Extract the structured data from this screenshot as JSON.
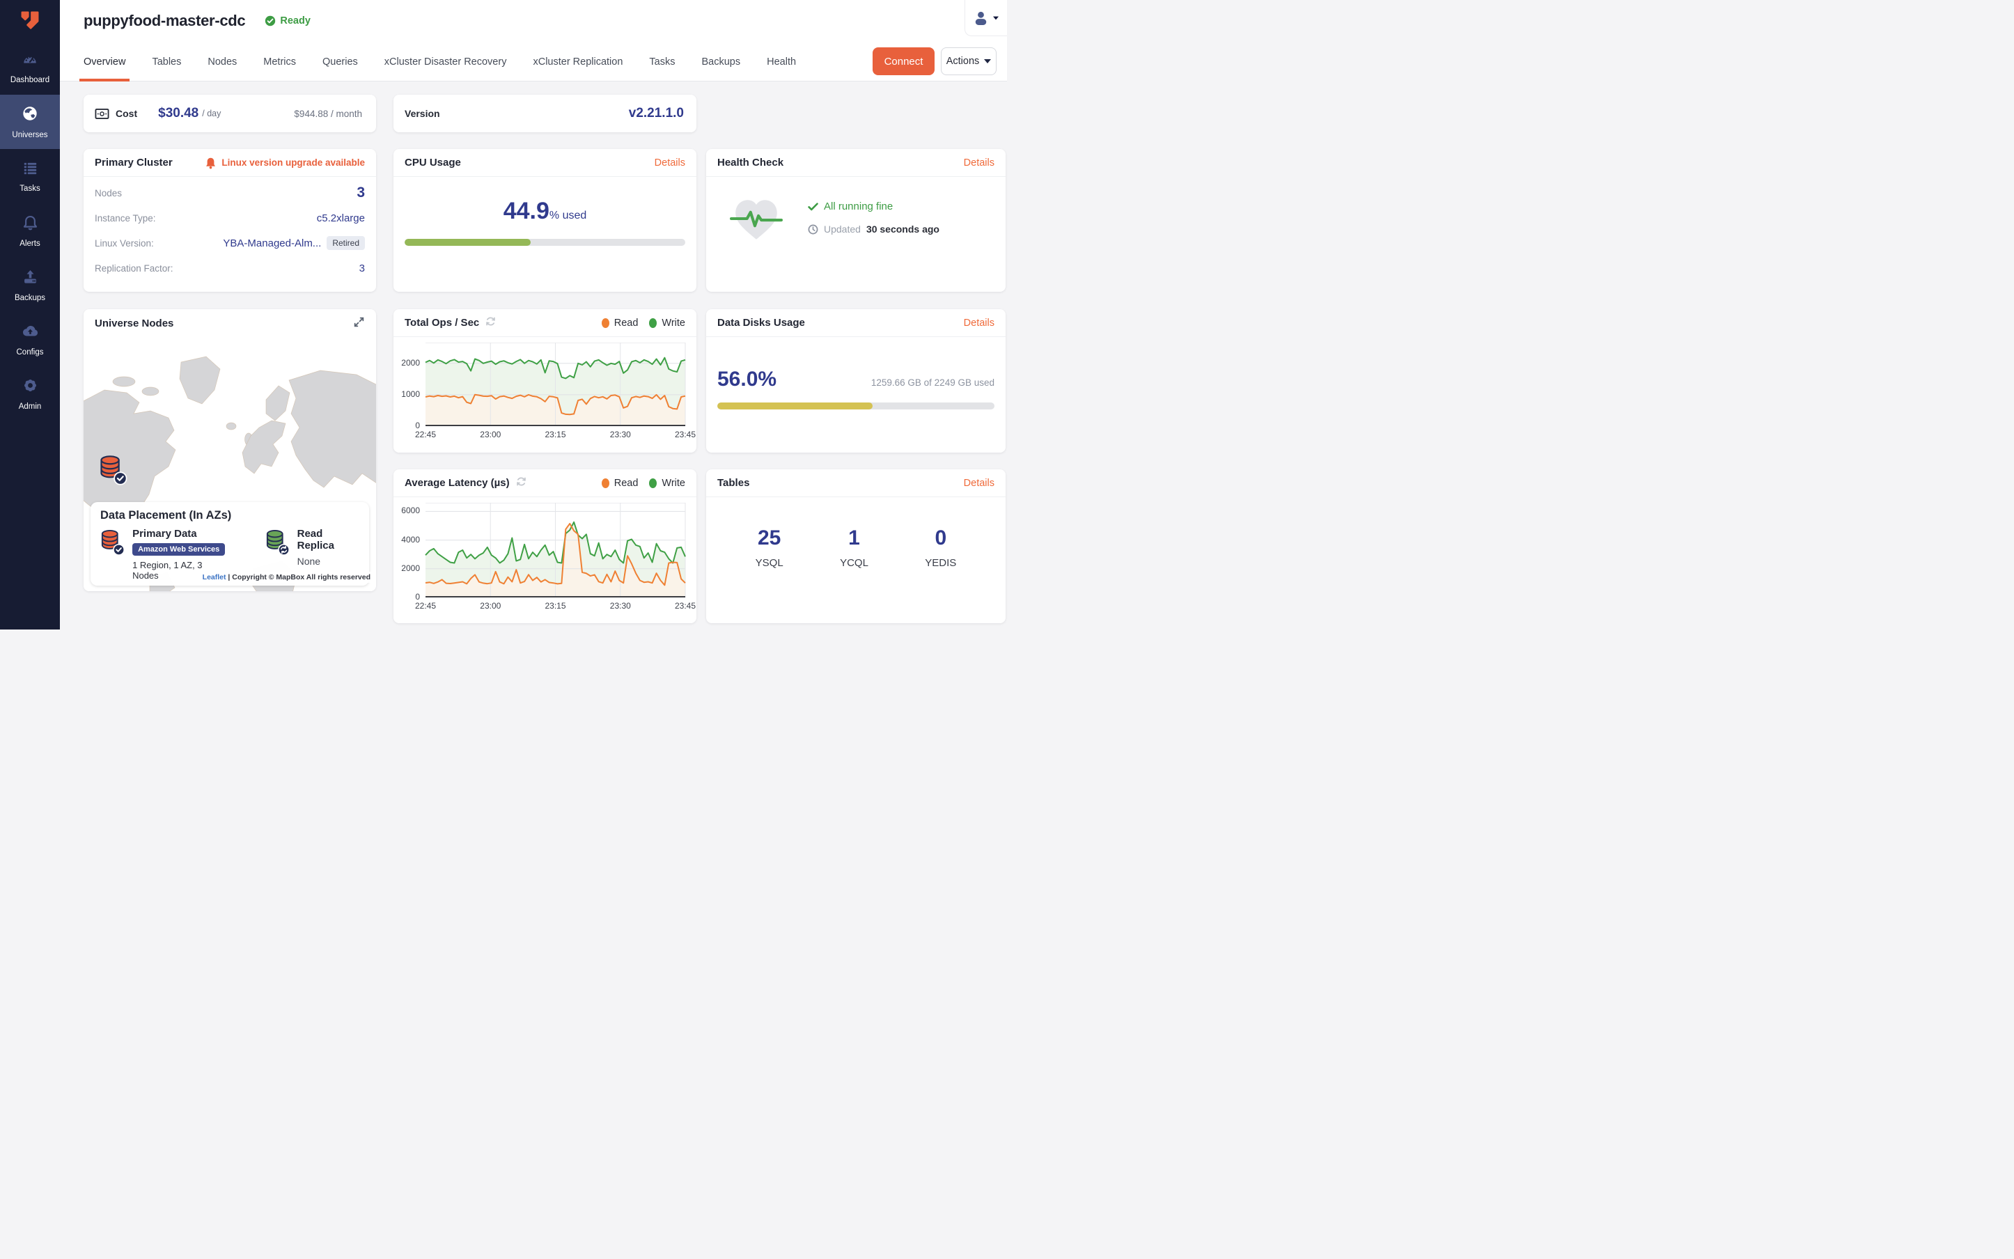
{
  "sidebar": {
    "items": [
      {
        "label": "Dashboard",
        "icon": "dashboard"
      },
      {
        "label": "Universes",
        "icon": "globe",
        "active": true
      },
      {
        "label": "Tasks",
        "icon": "tasks"
      },
      {
        "label": "Alerts",
        "icon": "bell"
      },
      {
        "label": "Backups",
        "icon": "backup"
      },
      {
        "label": "Configs",
        "icon": "cloud"
      },
      {
        "label": "Admin",
        "icon": "gear"
      }
    ]
  },
  "header": {
    "title": "puppyfood-master-cdc",
    "status": "Ready"
  },
  "tabs": [
    "Overview",
    "Tables",
    "Nodes",
    "Metrics",
    "Queries",
    "xCluster Disaster Recovery",
    "xCluster Replication",
    "Tasks",
    "Backups",
    "Health"
  ],
  "active_tab": "Overview",
  "toolbar": {
    "connect_label": "Connect",
    "actions_label": "Actions"
  },
  "cards": {
    "cost": {
      "label": "Cost",
      "day_value": "$30.48",
      "day_suffix": "/ day",
      "month_value": "$944.88 / month"
    },
    "version": {
      "label": "Version",
      "value": "v2.21.1.0"
    },
    "primary_cluster": {
      "title": "Primary Cluster",
      "alert": "Linux version upgrade available",
      "nodes_label": "Nodes",
      "nodes_value": "3",
      "instance_label": "Instance Type:",
      "instance_value": "c5.2xlarge",
      "linux_label": "Linux Version:",
      "linux_value": "YBA-Managed-Alm...",
      "linux_badge": "Retired",
      "rf_label": "Replication Factor:",
      "rf_value": "3"
    },
    "cpu": {
      "title": "CPU Usage",
      "link": "Details",
      "value": "44.9",
      "suffix": "% used",
      "percent": 44.9,
      "bar_color": "#94b857"
    },
    "health": {
      "title": "Health Check",
      "link": "Details",
      "status": "All running fine",
      "updated_label": "Updated",
      "updated_value": "30 seconds ago"
    },
    "nodes_map": {
      "title": "Universe Nodes",
      "placement_title": "Data Placement (In AZs)",
      "primary_title": "Primary Data",
      "primary_provider": "Amazon Web Services",
      "primary_detail": "1 Region, 1 AZ, 3 Nodes",
      "replica_title": "Read Replica",
      "replica_detail": "None",
      "attribution_link": "Leaflet",
      "attribution_text": "| Copyright © MapBox All rights reserved"
    },
    "disks": {
      "title": "Data Disks Usage",
      "link": "Details",
      "value": "56.0%",
      "detail": "1259.66 GB of 2249 GB used",
      "percent": 56,
      "bar_color": "#d4c253"
    },
    "tables": {
      "title": "Tables",
      "link": "Details",
      "counts": [
        {
          "value": "25",
          "label": "YSQL"
        },
        {
          "value": "1",
          "label": "YCQL"
        },
        {
          "value": "0",
          "label": "YEDIS"
        }
      ]
    }
  },
  "colors": {
    "accent_orange": "#e8603c",
    "navy_value": "#303a8d",
    "green": "#3d9c44",
    "sidebar_bg": "#171c33",
    "sidebar_active": "#3e4a72"
  },
  "chart_data": [
    {
      "type": "line",
      "title": "Total Ops / Sec",
      "legend": [
        "Read",
        "Write"
      ],
      "legend_position": "top-right",
      "grid": true,
      "x_tick_labels": [
        "22:45",
        "23:00",
        "23:15",
        "23:30",
        "23:45"
      ],
      "y_ticks": [
        0,
        1000,
        2000
      ],
      "ylim": [
        0,
        2660
      ],
      "series": [
        {
          "name": "Write",
          "color": "#3fa045",
          "fill": "#edf5eb",
          "values": [
            2030,
            2090,
            2010,
            2110,
            2060,
            1990,
            2080,
            2120,
            2040,
            2060,
            1990,
            1760,
            2140,
            2090,
            2000,
            2040,
            2070,
            1970,
            2050,
            2080,
            2020,
            1980,
            2060,
            2120,
            2000,
            2090,
            2050,
            1980,
            2110,
            1700,
            2080,
            2060,
            1990,
            1560,
            1520,
            1610,
            1545,
            2000,
            1950,
            2050,
            1890,
            2070,
            2110,
            2020,
            1940,
            2000,
            1970,
            2060,
            1690,
            1790,
            2050,
            2090,
            2020,
            2110,
            2060,
            1970,
            2140,
            1950,
            2180,
            1820,
            1760,
            1730,
            2070,
            2110
          ]
        },
        {
          "name": "Read",
          "color": "#ef8033",
          "fill": "#faf3e9",
          "values": [
            930,
            960,
            940,
            975,
            950,
            965,
            930,
            955,
            905,
            940,
            760,
            720,
            1005,
            985,
            955,
            950,
            970,
            865,
            940,
            960,
            915,
            885,
            950,
            985,
            935,
            1000,
            955,
            935,
            875,
            780,
            950,
            935,
            900,
            420,
            380,
            370,
            390,
            820,
            855,
            700,
            880,
            945,
            905,
            935,
            870,
            975,
            990,
            935,
            580,
            630,
            905,
            945,
            915,
            960,
            940,
            885,
            1000,
            855,
            975,
            620,
            560,
            545,
            930,
            960
          ]
        }
      ]
    },
    {
      "type": "line",
      "title": "Average Latency (µs)",
      "legend": [
        "Read",
        "Write"
      ],
      "legend_position": "top-right",
      "grid": true,
      "x_tick_labels": [
        "22:45",
        "23:00",
        "23:15",
        "23:30",
        "23:45"
      ],
      "y_ticks": [
        0,
        2000,
        4000,
        6000
      ],
      "ylim": [
        0,
        6600
      ],
      "series": [
        {
          "name": "Write",
          "color": "#3fa045",
          "fill": "#edf5eb",
          "values": [
            2950,
            3250,
            3400,
            3050,
            2850,
            2650,
            2450,
            2400,
            3150,
            3300,
            2750,
            3000,
            2700,
            2950,
            3100,
            3500,
            2950,
            2750,
            2400,
            2600,
            3050,
            4150,
            2550,
            2650,
            3700,
            2700,
            3150,
            2850,
            3300,
            3650,
            2950,
            3200,
            2450,
            2400,
            4450,
            4700,
            5250,
            4350,
            4100,
            4400,
            3050,
            2900,
            3800,
            2700,
            3000,
            2850,
            3300,
            2650,
            2400,
            3950,
            4050,
            3650,
            3550,
            2750,
            3100,
            2450,
            3750,
            3250,
            3150,
            2700,
            2400,
            3450,
            3500,
            2850
          ]
        },
        {
          "name": "Read",
          "color": "#ef8033",
          "fill": "#faf3e9",
          "values": [
            1020,
            1060,
            980,
            1080,
            1240,
            990,
            970,
            1010,
            1050,
            1090,
            950,
            1320,
            1580,
            1080,
            1000,
            960,
            1010,
            1800,
            1080,
            950,
            1420,
            1090,
            1930,
            1010,
            1110,
            1590,
            1190,
            1400,
            1080,
            1240,
            1050,
            1010,
            950,
            980,
            4750,
            5150,
            4650,
            4400,
            1750,
            1680,
            1500,
            1580,
            1100,
            1010,
            1610,
            1090,
            1840,
            1190,
            1010,
            2900,
            2350,
            1690,
            1190,
            1060,
            1090,
            1010,
            1690,
            1190,
            860,
            2400,
            2450,
            2430,
            1290,
            1010
          ]
        }
      ]
    }
  ]
}
